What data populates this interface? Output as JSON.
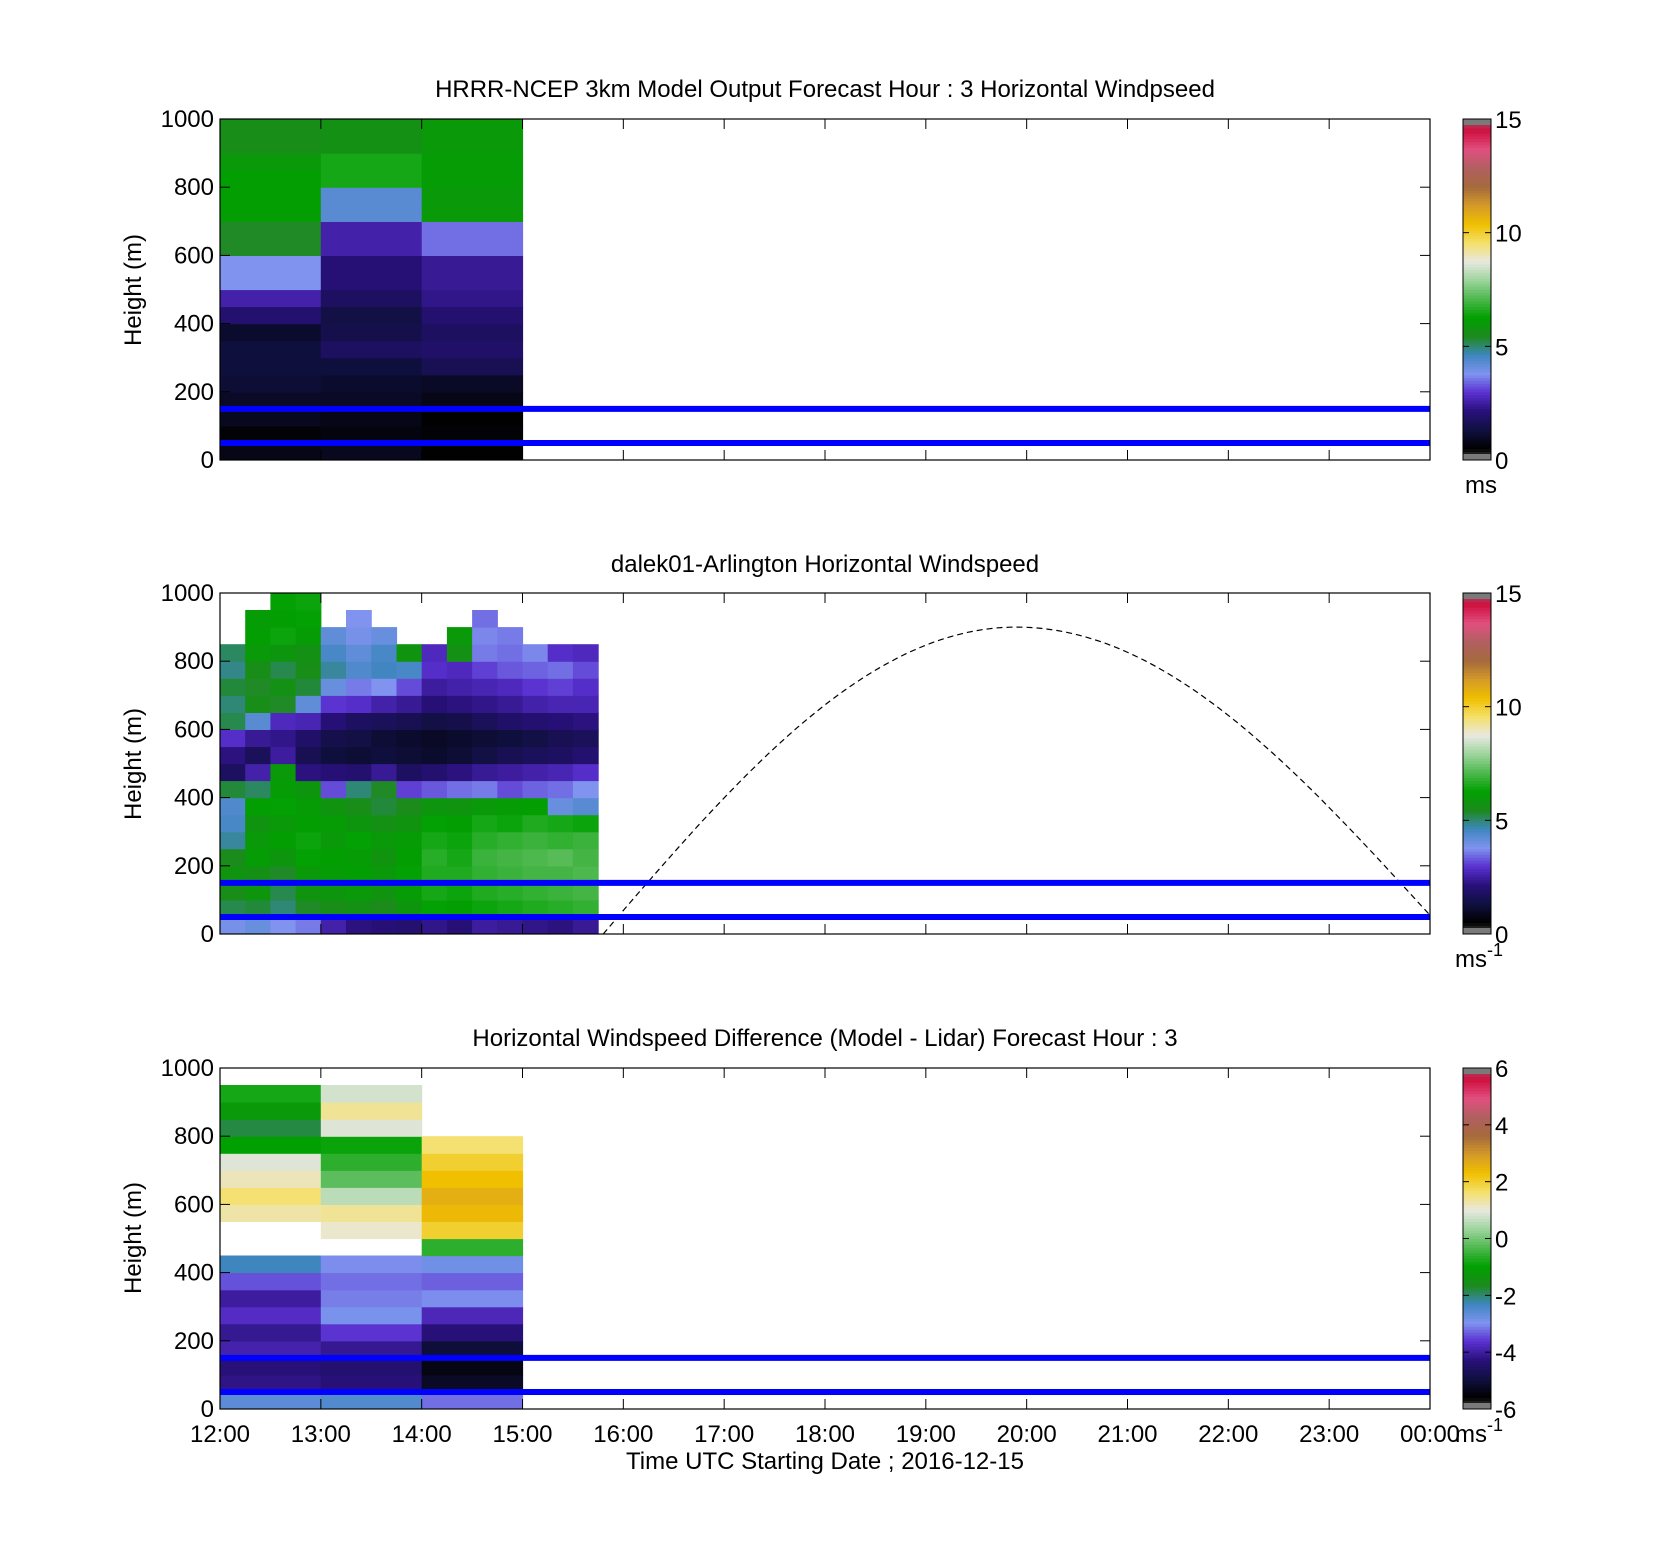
{
  "figure": {
    "xlabel": "Time UTC  Starting Date ; 2016-12-15",
    "x_ticks": [
      "12:00",
      "13:00",
      "14:00",
      "15:00",
      "16:00",
      "17:00",
      "18:00",
      "19:00",
      "20:00",
      "21:00",
      "22:00",
      "23:00",
      "00:00"
    ],
    "y_ticks": [
      "0",
      "200",
      "400",
      "600",
      "800",
      "1000"
    ],
    "ylabel": "Height (m)"
  },
  "colors": {
    "windspeed_scale": [
      "#7a7a7a",
      "#000000",
      "#101040",
      "#28107a",
      "#5a30d0",
      "#7f93ef",
      "#3f86c0",
      "#1d8a1d",
      "#00a000",
      "#4cb84c",
      "#9cd49c",
      "#e8e8e0",
      "#f5e06a",
      "#f0c000",
      "#d49a28",
      "#a56a3c",
      "#b06060",
      "#e05080",
      "#d01040",
      "#7a7a7a"
    ],
    "guide_line": "#0000ff",
    "dashed_curve": "#000000"
  },
  "chart_data": [
    {
      "type": "heatmap",
      "title": "HRRR-NCEP 3km Model Output   Forecast Hour : 3 Horizontal Windpseed",
      "ylabel": "Height (m)",
      "ylim": [
        0,
        1000
      ],
      "x_range_hours": [
        12,
        24
      ],
      "colorbar": {
        "min": 0,
        "max": 15,
        "ticks": [
          "0",
          "5",
          "10",
          "15"
        ],
        "unit": "ms"
      },
      "reference_lines_m": [
        50,
        150
      ],
      "grid": false,
      "x": [
        "12:00",
        "13:00",
        "14:00"
      ],
      "heights_m": [
        25,
        75,
        125,
        175,
        225,
        275,
        325,
        375,
        425,
        475,
        525,
        575,
        625,
        675,
        725,
        775,
        825,
        875,
        925,
        975
      ],
      "values": [
        [
          0.8,
          0.6,
          0.9,
          1.0,
          1.2,
          1.3,
          1.3,
          1.1,
          2.0,
          2.6,
          3.8,
          3.8,
          5.4,
          5.4,
          6.2,
          6.2,
          6.2,
          6.0,
          5.6,
          5.6
        ],
        [
          0.9,
          0.7,
          0.8,
          1.0,
          1.1,
          1.3,
          1.8,
          1.5,
          1.4,
          1.8,
          2.1,
          2.1,
          2.6,
          2.6,
          4.3,
          4.3,
          6.5,
          6.5,
          5.7,
          5.7
        ],
        [
          0.5,
          0.6,
          0.5,
          0.8,
          1.0,
          1.6,
          1.9,
          1.8,
          2.0,
          2.3,
          2.4,
          2.4,
          3.5,
          3.5,
          6.0,
          6.0,
          6.1,
          6.1,
          6.0,
          6.0
        ]
      ]
    },
    {
      "type": "heatmap",
      "title": "dalek01-Arlington  Horizontal Windspeed",
      "ylabel": "Height (m)",
      "ylim": [
        0,
        1000
      ],
      "x_range_hours": [
        12,
        24
      ],
      "colorbar": {
        "min": 0,
        "max": 15,
        "ticks": [
          "0",
          "5",
          "10",
          "15"
        ],
        "unit": "ms-1"
      },
      "reference_lines_m": [
        50,
        150
      ],
      "grid": false,
      "x_hours": [
        12.125,
        12.375,
        12.625,
        12.875,
        13.125,
        13.375,
        13.625,
        13.875,
        14.125,
        14.375,
        14.625,
        14.875,
        15.125,
        15.375,
        15.625
      ],
      "heights_m": [
        25,
        75,
        125,
        175,
        225,
        275,
        325,
        375,
        425,
        475,
        525,
        575,
        625,
        675,
        725,
        775,
        825,
        875,
        925,
        975
      ],
      "values": [
        [
          3.9,
          5.2,
          5.6,
          5.8,
          5.5,
          4.8,
          4.5,
          4.4,
          5.3,
          1.8,
          2.2,
          2.9,
          5.2,
          5.0,
          5.3,
          4.9,
          5.1,
          null,
          null,
          null
        ],
        [
          4.1,
          5.3,
          5.9,
          5.7,
          6.1,
          6.0,
          5.8,
          6.2,
          5.1,
          2.6,
          1.7,
          2.4,
          4.3,
          5.6,
          5.4,
          5.6,
          6.0,
          6.2,
          6.1,
          null
        ],
        [
          3.8,
          5.0,
          5.2,
          5.4,
          5.9,
          6.2,
          6.0,
          6.3,
          6.1,
          6.0,
          2.5,
          2.3,
          2.8,
          5.4,
          5.7,
          5.2,
          5.9,
          6.4,
          6.2,
          6.3
        ],
        [
          3.6,
          5.4,
          5.8,
          6.0,
          6.3,
          6.4,
          6.2,
          6.1,
          5.9,
          2.2,
          1.6,
          1.9,
          2.7,
          4.2,
          5.3,
          5.6,
          5.7,
          6.1,
          6.3,
          6.4
        ],
        [
          2.6,
          5.6,
          5.9,
          6.1,
          6.2,
          6.0,
          6.1,
          5.8,
          3.2,
          2.1,
          1.3,
          1.5,
          2.1,
          3.0,
          4.1,
          4.8,
          4.5,
          4.2,
          null,
          null
        ],
        [
          2.2,
          5.7,
          6.0,
          6.2,
          6.1,
          6.3,
          5.9,
          5.6,
          5.0,
          2.0,
          1.2,
          1.4,
          1.8,
          2.9,
          3.6,
          4.4,
          4.2,
          3.9,
          3.8,
          null
        ],
        [
          2.1,
          5.5,
          5.8,
          6.0,
          5.8,
          6.0,
          5.7,
          5.3,
          5.4,
          2.4,
          1.3,
          1.2,
          1.7,
          2.6,
          3.8,
          4.6,
          4.5,
          4.1,
          null,
          null
        ],
        [
          2.0,
          5.9,
          6.1,
          6.3,
          6.2,
          6.1,
          5.8,
          5.5,
          3.1,
          1.8,
          1.2,
          1.1,
          1.6,
          2.4,
          3.2,
          4.5,
          5.8,
          null,
          null,
          null
        ],
        [
          2.3,
          6.3,
          6.5,
          6.6,
          6.7,
          6.5,
          6.3,
          5.9,
          3.3,
          2.0,
          1.1,
          1.0,
          1.4,
          2.1,
          2.5,
          2.9,
          2.8,
          null,
          null,
          null
        ],
        [
          2.1,
          6.2,
          6.4,
          6.6,
          6.5,
          6.4,
          6.2,
          5.8,
          3.5,
          2.2,
          1.2,
          1.1,
          1.5,
          2.2,
          2.6,
          2.8,
          5.7,
          6.0,
          null,
          null
        ],
        [
          2.5,
          6.4,
          6.6,
          6.8,
          6.9,
          6.7,
          6.5,
          6.0,
          3.6,
          2.4,
          1.4,
          1.2,
          1.7,
          2.3,
          2.7,
          3.1,
          3.6,
          3.7,
          3.5,
          null
        ],
        [
          2.4,
          6.5,
          6.7,
          6.9,
          7.0,
          6.8,
          6.4,
          6.1,
          3.2,
          2.5,
          1.6,
          1.3,
          1.9,
          2.4,
          2.8,
          3.3,
          3.5,
          3.6,
          null,
          null
        ],
        [
          2.3,
          6.6,
          6.8,
          7.0,
          7.1,
          6.9,
          6.6,
          6.2,
          3.4,
          2.6,
          1.7,
          1.4,
          2.0,
          2.6,
          3.0,
          3.4,
          3.7,
          null,
          null,
          null
        ],
        [
          2.2,
          6.7,
          6.9,
          7.0,
          7.2,
          6.8,
          6.5,
          4.1,
          3.5,
          2.7,
          1.8,
          1.6,
          2.1,
          2.7,
          3.1,
          3.5,
          2.9,
          null,
          null,
          null
        ],
        [
          2.4,
          6.8,
          7.0,
          7.1,
          7.0,
          6.9,
          6.4,
          4.3,
          3.8,
          2.9,
          2.0,
          1.7,
          2.2,
          2.7,
          2.9,
          3.2,
          2.8,
          null,
          null,
          null
        ]
      ],
      "dashed_curve": {
        "x_hours": [
          15.8,
          24
        ],
        "peak_hour": 19.9,
        "peak_height_m": 900,
        "end_height_m": 55
      }
    },
    {
      "type": "heatmap",
      "title": "Horizontal Windspeed Difference (Model - Lidar) Forecast Hour : 3",
      "ylabel": "Height (m)",
      "xlabel": "Time UTC  Starting Date ; 2016-12-15",
      "ylim": [
        0,
        1000
      ],
      "x_range_hours": [
        12,
        24
      ],
      "colorbar": {
        "min": -6,
        "max": 6,
        "ticks": [
          "-6",
          "-4",
          "-2",
          "0",
          "2",
          "4",
          "6"
        ],
        "unit": "ms-1"
      },
      "reference_lines_m": [
        50,
        150
      ],
      "grid": false,
      "x": [
        "12:00",
        "13:00",
        "14:00"
      ],
      "heights_m": [
        25,
        75,
        125,
        175,
        225,
        275,
        325,
        375,
        425,
        475,
        525,
        575,
        625,
        675,
        725,
        775,
        825,
        875,
        925,
        975
      ],
      "values": [
        [
          -2.6,
          -4.2,
          -4.3,
          -3.9,
          -4.1,
          -3.7,
          -4.0,
          -3.4,
          -2.3,
          null,
          null,
          1.3,
          1.6,
          1.2,
          0.9,
          -1.0,
          -1.8,
          -1.2,
          -0.8,
          null
        ],
        [
          -2.5,
          -4.3,
          -4.4,
          -4.1,
          -3.6,
          -2.9,
          -3.1,
          -3.2,
          -3.0,
          null,
          1.1,
          1.4,
          0.6,
          -0.2,
          -0.6,
          -0.9,
          0.9,
          1.4,
          0.8,
          null
        ],
        [
          -3.2,
          -5.2,
          -5.4,
          -5.0,
          -4.3,
          -3.8,
          -3.0,
          -3.3,
          -2.8,
          -0.6,
          2.0,
          2.4,
          2.6,
          2.3,
          2.0,
          1.6,
          null,
          null,
          null,
          null
        ]
      ]
    }
  ]
}
